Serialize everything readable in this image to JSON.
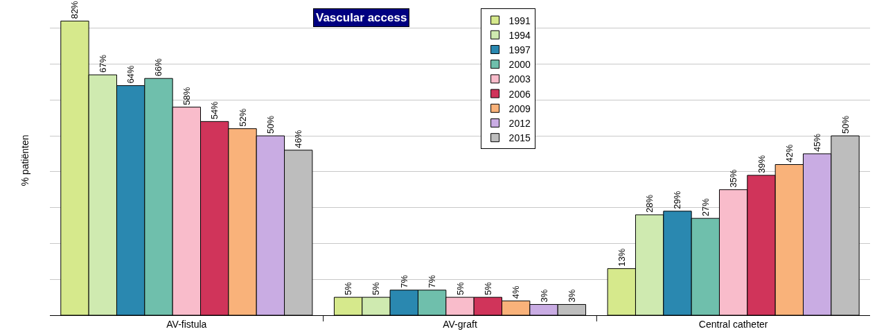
{
  "chart_data": {
    "type": "bar",
    "title": "Vascular access",
    "ylabel": "% patiënten",
    "categories": [
      "AV-fistula",
      "AV-graft",
      "Central catheter"
    ],
    "yticks": [
      {
        "value": 0,
        "label": null
      },
      {
        "value": 10,
        "label": null
      },
      {
        "value": 20,
        "label": null
      },
      {
        "value": 30,
        "label": null
      },
      {
        "value": 40,
        "label": null
      },
      {
        "value": 50,
        "label": null
      },
      {
        "value": 60,
        "label": null
      },
      {
        "value": 70,
        "label": null
      },
      {
        "value": 80,
        "label": null
      }
    ],
    "tick_labels": "x",
    "grid": "y",
    "legend": "top",
    "series": [
      {
        "name": "1991",
        "color": "#d6e98c",
        "values": [
          82,
          5,
          13
        ],
        "value_labels": [
          "82%",
          "5%",
          "13%"
        ]
      },
      {
        "name": "1994",
        "color": "#cfeab0",
        "values": [
          67,
          5,
          28
        ],
        "value_labels": [
          "67%",
          "5%",
          "28%"
        ]
      },
      {
        "name": "1997",
        "color": "#2a88b0",
        "values": [
          64,
          7,
          29
        ],
        "value_labels": [
          "64%",
          "7%",
          "29%"
        ]
      },
      {
        "name": "2000",
        "color": "#6fbfac",
        "values": [
          66,
          7,
          27
        ],
        "value_labels": [
          "66%",
          "7%",
          "27%"
        ]
      },
      {
        "name": "2003",
        "color": "#f9bccb",
        "values": [
          58,
          5,
          35
        ],
        "value_labels": [
          "58%",
          "5%",
          "35%"
        ]
      },
      {
        "name": "2006",
        "color": "#d0345a",
        "values": [
          54,
          5,
          39
        ],
        "value_labels": [
          "54%",
          "5%",
          "39%"
        ]
      },
      {
        "name": "2009",
        "color": "#f9b27a",
        "values": [
          52,
          4,
          42
        ],
        "value_labels": [
          "52%",
          "4%",
          "42%"
        ]
      },
      {
        "name": "2012",
        "color": "#c9ace3",
        "values": [
          50,
          3,
          45
        ],
        "value_labels": [
          "50%",
          "3%",
          "45%"
        ]
      },
      {
        "name": "2015",
        "color": "#bdbdbd",
        "values": [
          46,
          3,
          50
        ],
        "value_labels": [
          "46%",
          "3%",
          "50%"
        ]
      }
    ]
  }
}
